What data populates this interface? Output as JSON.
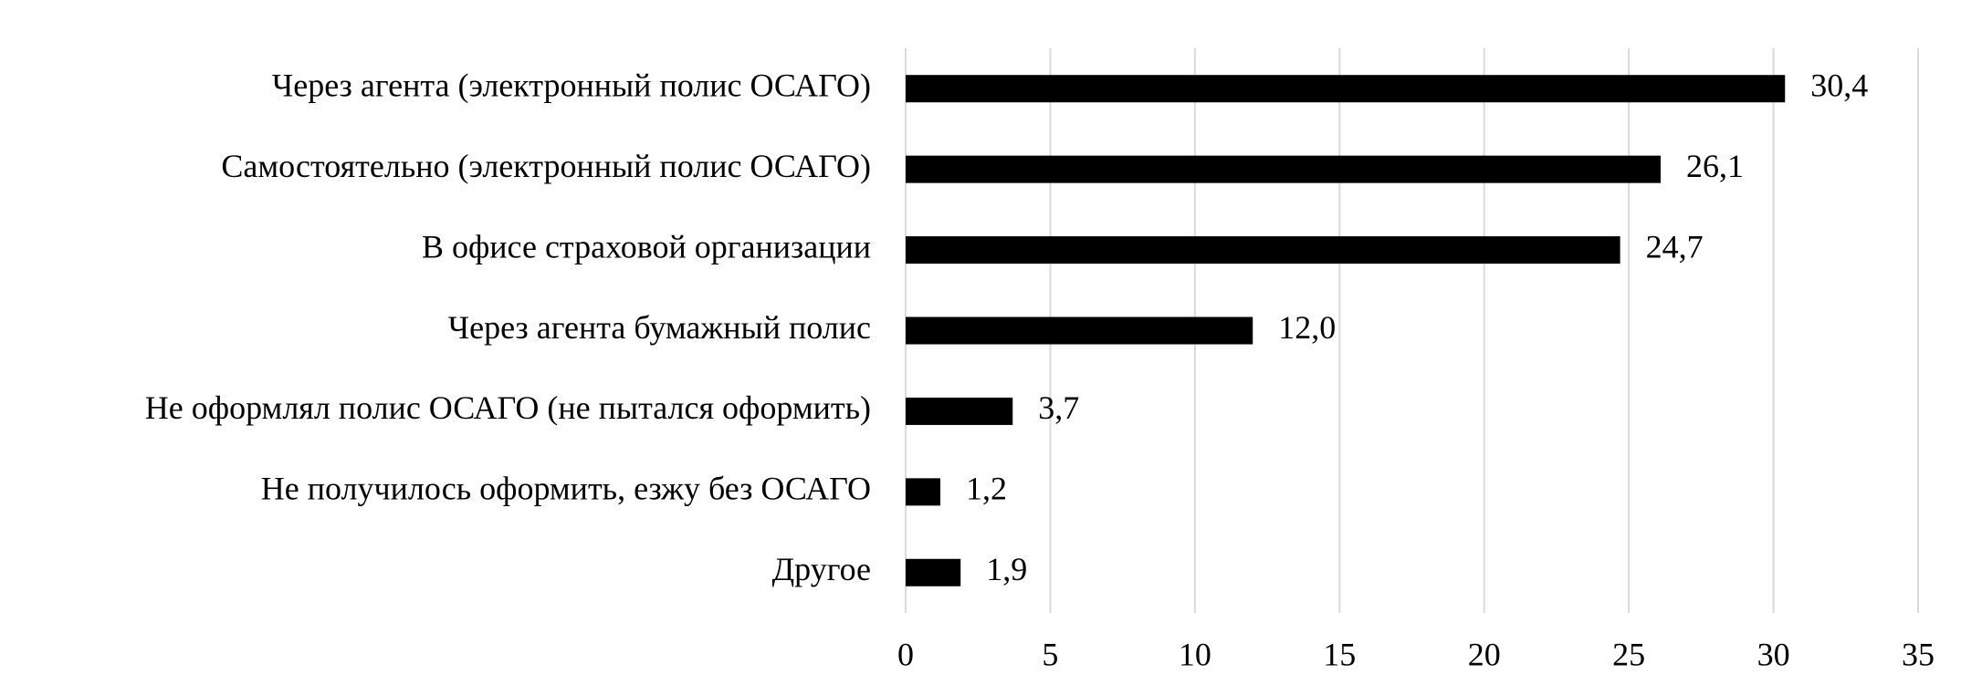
{
  "chart_data": {
    "type": "hbar",
    "categories": [
      "Через агента (электронный полис ОСАГО)",
      "Самостоятельно (электронный полис ОСАГО)",
      "В офисе страховой организации",
      "Через агента бумажный полис",
      "Не оформлял полис ОСАГО (не пытался оформить)",
      "Не получилось оформить, езжу без ОСАГО",
      "Другое"
    ],
    "values": [
      30.4,
      26.1,
      24.7,
      12.0,
      3.7,
      1.2,
      1.9
    ],
    "value_labels": [
      "30,4",
      "26,1",
      "24,7",
      "12,0",
      "3,7",
      "1,2",
      "1,9"
    ],
    "color": "#000000",
    "xlim": [
      0,
      35
    ],
    "xticks": [
      0,
      5,
      10,
      15,
      20,
      25,
      30,
      35
    ],
    "grid": true
  }
}
